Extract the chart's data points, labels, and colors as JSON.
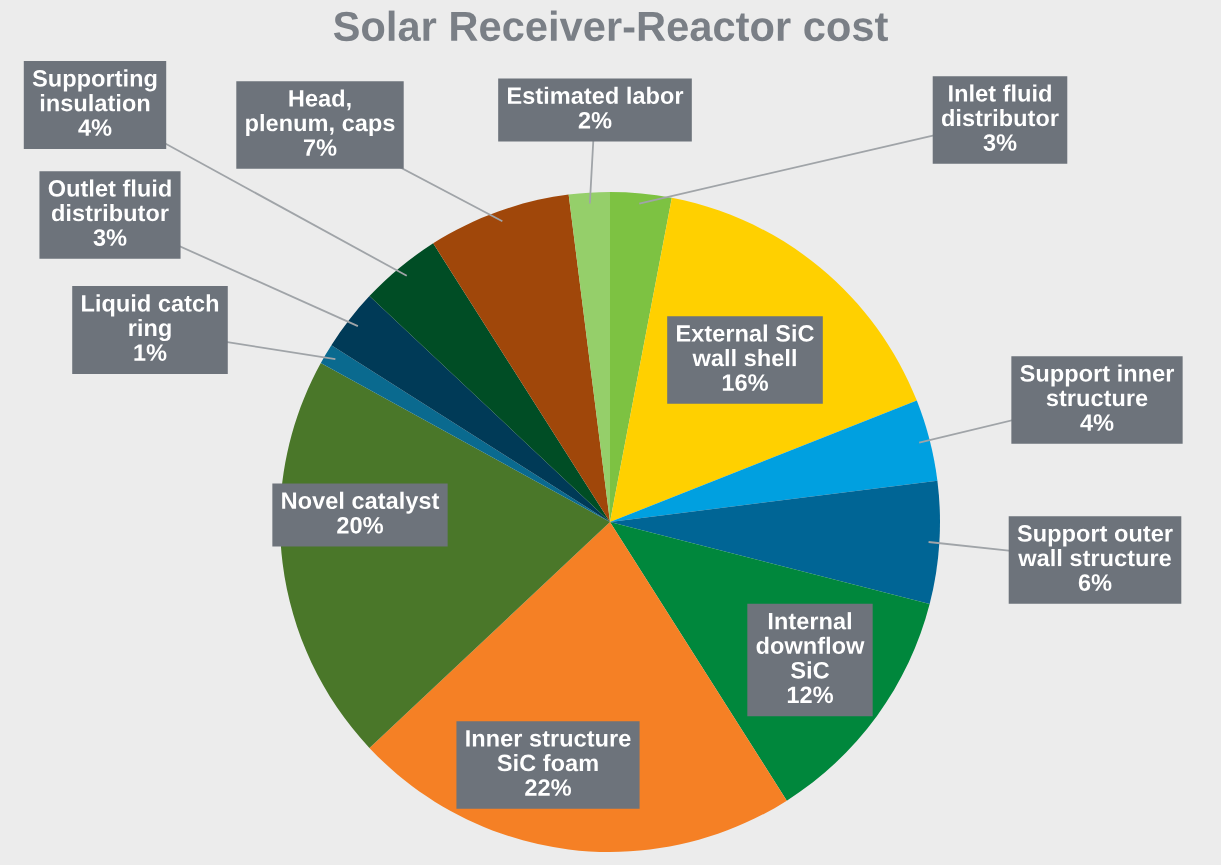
{
  "chart_data": {
    "type": "pie",
    "title": "Solar Receiver-Reactor cost",
    "categories": [
      "Inlet fluid\ndistributor",
      "External SiC\nwall shell",
      "Support inner\nstructure",
      "Support outer\nwall structure",
      "Internal\ndownflow\nSiC",
      "Inner structure\nSiC foam",
      "Novel catalyst",
      "Liquid catch\nring",
      "Outlet fluid\ndistributor",
      "Supporting\ninsulation",
      "Head,\nplenum, caps",
      "Estimated labor"
    ],
    "values": [
      3,
      16,
      4,
      6,
      12,
      22,
      20,
      1,
      3,
      4,
      7,
      2
    ],
    "value_labels": [
      "3%",
      "16%",
      "4%",
      "6%",
      "12%",
      "22%",
      "20%",
      "1%",
      "3%",
      "4%",
      "7%",
      "2%"
    ],
    "colors": [
      "#7dc242",
      "#ffd000",
      "#00a0e0",
      "#006595",
      "#00873c",
      "#f58025",
      "#4a7729",
      "#0a6a8f",
      "#003a57",
      "#004d25",
      "#a0470a",
      "#95cf6a"
    ],
    "legend": false
  }
}
